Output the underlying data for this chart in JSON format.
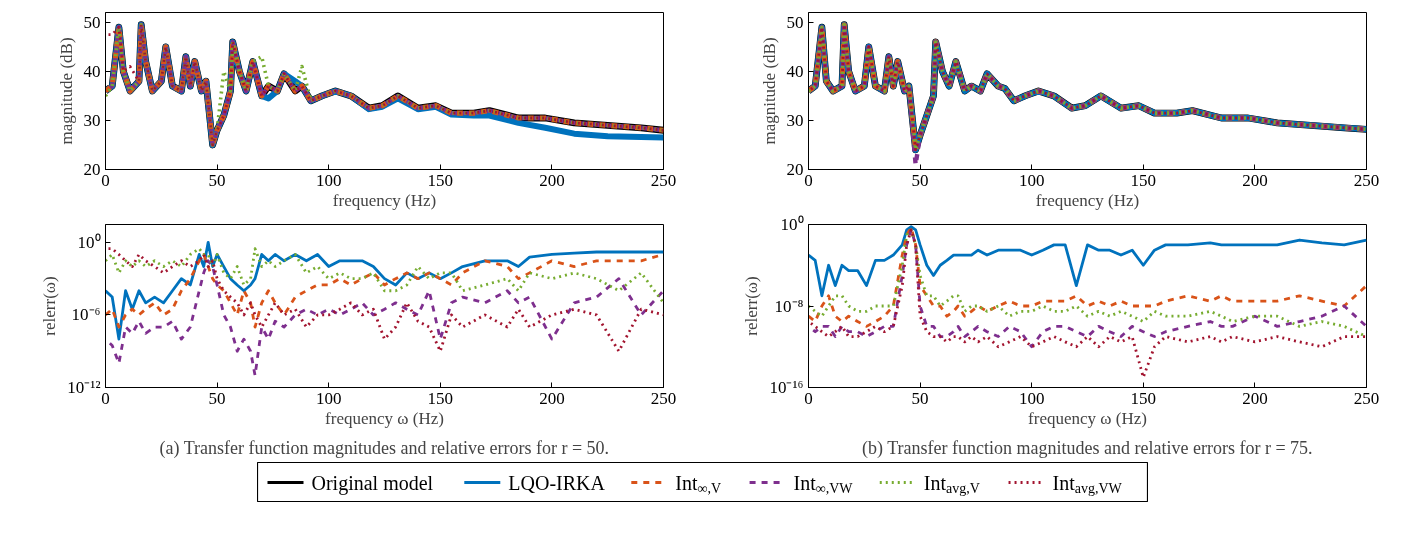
{
  "chart_data": [
    {
      "type": "line",
      "xlabel": "frequency (Hz)",
      "ylabel": "magnitude (dB)",
      "xlim": [
        0,
        250
      ],
      "xticks": [
        0,
        50,
        100,
        150,
        200,
        250
      ],
      "ylim": [
        20,
        52
      ],
      "yticks": [
        20,
        30,
        40,
        50
      ],
      "legend": "bottom",
      "x": [
        0,
        3,
        6,
        8,
        11,
        15,
        16,
        18,
        21,
        25,
        27,
        30,
        34,
        36,
        38,
        40,
        43,
        45,
        48,
        50,
        53,
        56,
        57,
        60,
        63,
        66,
        70,
        73,
        77,
        80,
        85,
        88,
        92,
        97,
        103,
        110,
        118,
        124,
        131,
        140,
        148,
        155,
        165,
        172,
        185,
        197,
        210,
        225,
        240,
        250
      ],
      "series": [
        {
          "name": "Original model",
          "color": "#000000",
          "line_style": "solid",
          "values": [
            36,
            37,
            49,
            40,
            36,
            38,
            49.5,
            42,
            36,
            38,
            45,
            37,
            36,
            43,
            37,
            42,
            36,
            38,
            25,
            28,
            31,
            36,
            46,
            40,
            36,
            42,
            35,
            37,
            36,
            39.5,
            36,
            37,
            34,
            35,
            36,
            35,
            32.5,
            33,
            35,
            32.5,
            33,
            31.5,
            31.5,
            32,
            30.5,
            30.5,
            29.5,
            29,
            28.5,
            28
          ]
        },
        {
          "name": "LQO-IRKA",
          "color": "#0072bd",
          "line_style": "solid",
          "values": [
            36,
            37,
            49,
            40,
            36,
            38,
            49.5,
            42,
            36,
            38,
            45,
            37,
            36,
            43,
            37,
            42,
            36,
            38,
            25,
            28,
            31,
            36,
            46,
            40,
            36,
            42,
            35,
            34.5,
            36,
            39.5,
            38,
            37,
            34,
            35,
            36,
            35,
            32.3,
            32.8,
            34.5,
            32.3,
            32.8,
            31.2,
            31,
            31,
            29.5,
            28.5,
            27.3,
            26.8,
            26.6,
            26.5
          ]
        },
        {
          "name": "Int$_{∞,V}$",
          "color": "#d95319",
          "line_style": "dashed",
          "values": [
            36,
            37,
            49,
            40,
            36,
            38,
            49.5,
            42,
            36,
            38,
            45,
            37,
            36,
            43,
            37,
            42,
            36,
            38,
            25,
            28,
            31,
            36,
            46,
            40,
            36,
            42,
            35,
            37,
            36,
            39.5,
            36,
            37,
            34,
            35,
            36,
            35,
            32.5,
            33,
            35,
            32.5,
            33,
            31.5,
            31.5,
            32,
            30.5,
            30.5,
            29.5,
            29,
            28.5,
            28
          ]
        },
        {
          "name": "Int$_{∞,VW}$",
          "color": "#7e2f8e",
          "line_style": "dashed",
          "values": [
            36,
            37,
            49,
            40,
            36,
            38,
            49.5,
            42,
            36,
            38,
            45,
            37,
            36,
            43,
            37,
            42,
            36,
            38,
            25,
            28,
            31,
            36,
            46,
            40,
            36,
            42,
            35,
            37,
            36,
            39.5,
            36,
            37,
            34,
            35,
            36,
            35,
            32.5,
            33,
            35,
            32.5,
            33,
            31.5,
            31.5,
            32,
            30.5,
            30.5,
            29.5,
            29,
            28.5,
            28
          ]
        },
        {
          "name": "Int$_{avg,V}$",
          "color": "#77ac30",
          "line_style": "dotted",
          "values": [
            35,
            37,
            49,
            40,
            36,
            38,
            49.5,
            42,
            36,
            38,
            45,
            37,
            36,
            43,
            37,
            42,
            36,
            38,
            25,
            28,
            40,
            36,
            46,
            40,
            36,
            42,
            43,
            37,
            36,
            39.5,
            36,
            41,
            34,
            35,
            36,
            35,
            32.5,
            33,
            35,
            32.5,
            33,
            31.5,
            31.5,
            32,
            30.5,
            30.5,
            29.5,
            29,
            28.5,
            28
          ]
        },
        {
          "name": "Int$_{avg,VW}$",
          "color": "#a2142f",
          "line_style": "dotted",
          "values": [
            47.5,
            47.5,
            49,
            40,
            41,
            38,
            49.5,
            42,
            36,
            38,
            45,
            37,
            36,
            43,
            37,
            42,
            36,
            38,
            25,
            28,
            31,
            36,
            46,
            40,
            36,
            42,
            35,
            37,
            36,
            39.5,
            36,
            37,
            34,
            35,
            36,
            35,
            32.5,
            33,
            35,
            32.5,
            33,
            31.5,
            31.5,
            32,
            30.5,
            30.5,
            29.5,
            29,
            28.5,
            28
          ]
        }
      ]
    },
    {
      "type": "line",
      "xlabel": "frequency (Hz)",
      "ylabel": "magnitude (dB)",
      "xlim": [
        0,
        250
      ],
      "xticks": [
        0,
        50,
        100,
        150,
        200,
        250
      ],
      "ylim": [
        20,
        52
      ],
      "yticks": [
        20,
        30,
        40,
        50
      ],
      "x": [
        0,
        3,
        6,
        8,
        11,
        15,
        16,
        18,
        21,
        25,
        27,
        30,
        34,
        36,
        38,
        40,
        43,
        45,
        48,
        50,
        53,
        56,
        57,
        60,
        63,
        66,
        70,
        73,
        77,
        80,
        85,
        88,
        92,
        97,
        103,
        110,
        118,
        124,
        131,
        140,
        148,
        155,
        165,
        172,
        185,
        197,
        210,
        225,
        240,
        250
      ],
      "series": [
        {
          "color": "#000000",
          "line_style": "solid",
          "values": [
            36,
            37,
            49,
            38,
            36,
            37,
            49.5,
            40,
            36,
            37,
            45,
            37,
            36,
            43,
            37,
            42,
            36,
            37,
            24,
            27,
            31,
            35,
            46,
            40,
            37,
            42,
            36,
            37,
            36,
            39.5,
            37,
            36.5,
            34,
            35,
            36,
            35,
            32.5,
            33,
            35,
            32.5,
            33,
            31.5,
            31.5,
            32,
            30.5,
            30.5,
            29.5,
            29,
            28.5,
            28.2
          ]
        },
        {
          "color": "#0072bd",
          "line_style": "solid",
          "values": [
            36,
            37,
            49,
            38,
            36,
            37,
            49.5,
            40,
            36,
            37,
            45,
            37,
            36,
            43,
            37,
            42,
            36,
            37,
            24,
            27,
            31,
            35,
            46,
            40,
            37,
            42,
            36,
            37,
            36,
            39.5,
            37,
            36.5,
            34,
            35,
            36,
            35,
            32.5,
            33,
            35,
            32.5,
            33,
            31.5,
            31.5,
            32,
            30.5,
            30.5,
            29.5,
            29,
            28.5,
            28.2
          ]
        },
        {
          "color": "#d95319",
          "line_style": "dashed",
          "values": [
            36,
            37,
            49,
            38,
            36,
            37,
            49.5,
            40,
            36,
            37,
            45,
            37,
            36,
            43,
            37,
            42,
            36,
            37,
            24,
            27,
            31,
            35,
            46,
            40,
            37,
            42,
            36,
            37,
            36,
            39.5,
            37,
            36.5,
            34,
            35,
            36,
            35,
            32.5,
            33,
            35,
            32.5,
            33,
            31.5,
            31.5,
            32,
            30.5,
            30.5,
            29.5,
            29,
            28.5,
            28.2
          ]
        },
        {
          "color": "#7e2f8e",
          "line_style": "dashed",
          "values": [
            36,
            37,
            49,
            38,
            36,
            37,
            49.5,
            40,
            36,
            37,
            45,
            37,
            36,
            43,
            37,
            42,
            36,
            37,
            21,
            27,
            31,
            35,
            46,
            40,
            37,
            42,
            36,
            37,
            36,
            39.5,
            37,
            36.5,
            34,
            35,
            36,
            35,
            32.5,
            33,
            35,
            32.5,
            33,
            31.5,
            31.5,
            32,
            30.5,
            30.5,
            29.5,
            29,
            28.5,
            28.2
          ]
        },
        {
          "color": "#77ac30",
          "line_style": "dotted",
          "values": [
            36,
            37,
            49,
            38,
            36,
            37,
            49.5,
            40,
            36,
            37,
            45,
            37,
            36,
            43,
            37,
            42,
            36,
            37,
            24,
            27,
            31,
            35,
            46,
            40,
            37,
            42,
            36,
            37,
            36,
            39.5,
            37,
            36.5,
            34,
            35,
            36,
            35,
            32.5,
            33,
            35,
            32.5,
            33,
            31.5,
            31.5,
            32,
            30.5,
            30.5,
            29.5,
            29,
            28.5,
            28.2
          ]
        },
        {
          "color": "#a2142f",
          "line_style": "dotted",
          "values": [
            36,
            37,
            49,
            38,
            36,
            37,
            49.5,
            40,
            36,
            37,
            45,
            37,
            36,
            43,
            37,
            42,
            36,
            37,
            24,
            27,
            31,
            35,
            46,
            40,
            37,
            42,
            36,
            37,
            36,
            39.5,
            37,
            36.5,
            34,
            35,
            36,
            35,
            32.5,
            33,
            35,
            32.5,
            33,
            31.5,
            31.5,
            32,
            30.5,
            30.5,
            29.5,
            29,
            28.5,
            28.2
          ]
        }
      ]
    },
    {
      "type": "line",
      "xlabel": "frequency ω (Hz)",
      "ylabel": "relerr(ω)",
      "log": true,
      "xlim": [
        0,
        250
      ],
      "xticks": [
        0,
        50,
        100,
        150,
        200,
        250
      ],
      "ylim": [
        1e-12,
        30
      ],
      "yticks": [
        {
          "value": 1e-12,
          "label": "10⁻¹²"
        },
        {
          "value": 1e-06,
          "label": "10⁻⁶"
        },
        {
          "value": 1,
          "label": "10⁰"
        }
      ],
      "annotations": [
        "(a) Transfer function magnitudes and relative errors for r = 50."
      ],
      "x": [
        0,
        3,
        6,
        9,
        12,
        15,
        18,
        22,
        26,
        30,
        34,
        38,
        42,
        44,
        46,
        48,
        50,
        53,
        56,
        59,
        62,
        65,
        67,
        70,
        73,
        76,
        80,
        85,
        90,
        95,
        100,
        105,
        110,
        115,
        120,
        125,
        130,
        135,
        140,
        145,
        150,
        155,
        160,
        170,
        180,
        185,
        190,
        200,
        210,
        220,
        230,
        240,
        250
      ],
      "series": [
        {
          "color": "#0072bd",
          "line_style": "solid",
          "values": [
            0.0001,
            3e-05,
            1e-08,
            0.0001,
            3e-06,
            0.0001,
            1e-05,
            3e-05,
            1e-05,
            0.0001,
            0.001,
            0.0003,
            0.1,
            0.01,
            1,
            0.01,
            0.1,
            0.01,
            0.001,
            0.0003,
            0.0001,
            0.0003,
            0.001,
            0.1,
            0.03,
            0.1,
            0.03,
            0.1,
            0.03,
            0.1,
            0.01,
            0.03,
            0.03,
            0.03,
            0.01,
            0.001,
            0.0003,
            0.003,
            0.001,
            0.003,
            0.001,
            0.003,
            0.01,
            0.03,
            0.03,
            0.01,
            0.06,
            0.1,
            0.13,
            0.16,
            0.16,
            0.16,
            0.16
          ]
        },
        {
          "color": "#d95319",
          "line_style": "dashed",
          "values": [
            1e-06,
            3e-06,
            1e-07,
            1e-06,
            3e-06,
            1e-06,
            3e-06,
            1e-05,
            1e-06,
            3e-06,
            0.0001,
            0.001,
            0.03,
            0.1,
            0.01,
            0.001,
            0.0003,
            0.0001,
            1e-05,
            1e-06,
            0.0001,
            1e-05,
            1e-07,
            1e-05,
            0.0001,
            1e-05,
            1e-06,
            3e-05,
            0.0001,
            0.0003,
            0.0003,
            0.001,
            0.0003,
            0.001,
            0.003,
            0.0003,
            0.001,
            0.003,
            0.001,
            0.003,
            0.001,
            0.0003,
            0.003,
            0.03,
            0.01,
            0.001,
            0.003,
            0.03,
            0.01,
            0.03,
            0.03,
            0.03,
            0.1
          ]
        },
        {
          "color": "#7e2f8e",
          "line_style": "dashed",
          "values": [
            1e-08,
            3e-09,
            1e-10,
            1e-07,
            3e-08,
            3e-07,
            3e-08,
            1e-07,
            1e-07,
            3e-07,
            1e-08,
            1e-07,
            0.0001,
            0.003,
            0.03,
            0.01,
            0.0003,
            1e-06,
            1e-07,
            1e-09,
            1e-08,
            1e-09,
            1e-11,
            1e-07,
            1e-08,
            3e-07,
            1e-07,
            1e-06,
            3e-06,
            1e-06,
            3e-06,
            1e-06,
            3e-06,
            1e-05,
            1e-06,
            3e-06,
            1e-05,
            3e-06,
            1e-06,
            0.0001,
            1e-08,
            1e-05,
            3e-05,
            1e-05,
            0.0001,
            1e-05,
            3e-05,
            1e-08,
            1e-05,
            3e-05,
            0.001,
            1e-06,
            0.0001
          ]
        },
        {
          "color": "#77ac30",
          "line_style": "dotted",
          "values": [
            0.03,
            0.1,
            0.003,
            0.03,
            0.01,
            0.03,
            0.01,
            0.03,
            0.01,
            0.03,
            0.01,
            0.1,
            0.3,
            0.1,
            0.1,
            0.01,
            0.1,
            0.003,
            0.001,
            0.01,
            0.0003,
            0.001,
            0.3,
            0.01,
            0.03,
            0.01,
            0.03,
            0.1,
            0.003,
            0.01,
            0.001,
            0.003,
            0.001,
            0.001,
            0.003,
            0.0001,
            0.0001,
            0.0003,
            0.01,
            0.001,
            0.003,
            0.003,
            0.0001,
            0.0003,
            0.001,
            0.0001,
            0.003,
            0.001,
            0.003,
            0.001,
            0.0001,
            0.003,
            1e-05
          ]
        },
        {
          "color": "#a2142f",
          "line_style": "dotted",
          "values": [
            0.3,
            0.3,
            0.1,
            0.03,
            0.01,
            0.1,
            0.03,
            0.01,
            0.003,
            0.01,
            0.03,
            0.01,
            0.03,
            0.1,
            0.01,
            0.03,
            0.001,
            0.0001,
            3e-05,
            1e-05,
            1e-06,
            1e-05,
            1e-06,
            1e-07,
            1e-06,
            1e-05,
            1e-06,
            3e-06,
            1e-07,
            1e-06,
            1e-06,
            3e-06,
            1e-05,
            1e-06,
            3e-06,
            1e-08,
            1e-07,
            1e-05,
            3e-07,
            1e-07,
            1e-09,
            1e-06,
            1e-07,
            1e-06,
            1e-07,
            3e-06,
            1e-07,
            1e-06,
            3e-06,
            1e-06,
            1e-09,
            3e-06,
            1e-06
          ]
        }
      ]
    },
    {
      "type": "line",
      "xlabel": "frequency ω (Hz)",
      "ylabel": "relerr(ω)",
      "log": true,
      "xlim": [
        0,
        250
      ],
      "xticks": [
        0,
        50,
        100,
        150,
        200,
        250
      ],
      "ylim": [
        1e-16,
        1
      ],
      "yticks": [
        {
          "value": 1e-16,
          "label": "10⁻¹⁶"
        },
        {
          "value": 1e-08,
          "label": "10⁻⁸"
        },
        {
          "value": 1,
          "label": "10⁰"
        }
      ],
      "annotations": [
        "(b) Transfer function magnitudes and relative errors for r = 75."
      ],
      "x": [
        0,
        3,
        6,
        9,
        12,
        15,
        18,
        22,
        26,
        30,
        34,
        38,
        42,
        44,
        46,
        48,
        50,
        53,
        56,
        59,
        62,
        65,
        67,
        70,
        73,
        76,
        80,
        85,
        90,
        95,
        100,
        105,
        110,
        115,
        120,
        125,
        130,
        135,
        140,
        145,
        150,
        155,
        160,
        170,
        180,
        185,
        190,
        200,
        210,
        220,
        230,
        240,
        250
      ],
      "series": [
        {
          "color": "#0072bd",
          "line_style": "solid",
          "values": [
            0.001,
            0.0003,
            1e-07,
            0.0001,
            1e-06,
            0.0001,
            3e-05,
            3e-05,
            1e-06,
            0.0003,
            0.0003,
            0.001,
            0.01,
            0.3,
            0.6,
            0.3,
            0.01,
            0.0001,
            1e-05,
            0.0001,
            0.0003,
            0.001,
            0.001,
            0.001,
            0.001,
            0.003,
            0.001,
            0.003,
            0.003,
            0.003,
            0.001,
            0.003,
            0.01,
            0.01,
            1e-06,
            0.01,
            0.003,
            0.003,
            0.001,
            0.003,
            0.0001,
            0.003,
            0.01,
            0.01,
            0.016,
            0.01,
            0.01,
            0.01,
            0.01,
            0.03,
            0.016,
            0.01,
            0.03
          ]
        },
        {
          "color": "#d95319",
          "line_style": "dashed",
          "values": [
            1e-09,
            3e-10,
            1e-08,
            1e-07,
            1e-09,
            3e-10,
            1e-09,
            3e-10,
            1e-10,
            3e-10,
            1e-09,
            1e-08,
            0.001,
            0.1,
            0.5,
            0.01,
            1e-06,
            1e-07,
            1e-08,
            1e-08,
            1e-09,
            3e-09,
            1e-08,
            1e-09,
            3e-09,
            1e-08,
            3e-09,
            1e-08,
            3e-08,
            1e-08,
            1e-08,
            3e-08,
            3e-08,
            3e-08,
            1e-07,
            1e-08,
            3e-08,
            1e-08,
            3e-08,
            1e-08,
            1e-08,
            1e-08,
            3e-08,
            1e-07,
            3e-08,
            1e-07,
            3e-08,
            3e-08,
            3e-08,
            1e-07,
            3e-08,
            1e-08,
            1e-06
          ]
        },
        {
          "color": "#7e2f8e",
          "line_style": "dashed",
          "values": [
            1e-10,
            3e-11,
            1e-10,
            1e-10,
            1e-11,
            1e-10,
            3e-11,
            3e-11,
            1e-11,
            3e-11,
            1e-10,
            1e-10,
            1e-05,
            0.01,
            0.3,
            0.01,
            1e-08,
            1e-10,
            1e-10,
            1e-11,
            1e-11,
            3e-11,
            1e-10,
            1e-11,
            3e-11,
            1e-10,
            3e-11,
            1e-11,
            1e-10,
            3e-11,
            1e-12,
            3e-11,
            1e-10,
            1e-10,
            3e-11,
            1e-11,
            1e-10,
            3e-11,
            1e-11,
            1e-10,
            3e-11,
            1e-11,
            3e-11,
            1e-10,
            3e-10,
            1e-10,
            1e-10,
            1e-09,
            1e-10,
            3e-10,
            1e-09,
            1e-08,
            1e-10
          ]
        },
        {
          "color": "#77ac30",
          "line_style": "dotted",
          "values": [
            1e-08,
            3e-09,
            1e-09,
            1e-08,
            1e-07,
            1e-07,
            1e-08,
            3e-09,
            3e-09,
            1e-08,
            1e-08,
            1e-08,
            0.0001,
            0.1,
            0.3,
            0.01,
            1e-05,
            1e-07,
            1e-07,
            1e-08,
            3e-08,
            1e-07,
            1e-07,
            3e-09,
            1e-08,
            1e-08,
            3e-09,
            1e-08,
            1e-09,
            3e-09,
            3e-09,
            1e-08,
            3e-09,
            3e-09,
            1e-08,
            1e-09,
            3e-09,
            1e-09,
            3e-09,
            1e-09,
            3e-10,
            3e-09,
            1e-09,
            1e-09,
            3e-09,
            1e-09,
            3e-10,
            1e-09,
            1e-09,
            1e-10,
            3e-10,
            1e-10,
            1e-11
          ]
        },
        {
          "color": "#a2142f",
          "line_style": "dotted",
          "values": [
            3e-10,
            1e-10,
            3e-11,
            1e-11,
            3e-11,
            1e-10,
            1e-11,
            1e-11,
            3e-11,
            1e-10,
            3e-11,
            1e-10,
            1e-06,
            0.01,
            0.3,
            0.01,
            1e-09,
            3e-11,
            1e-11,
            1e-11,
            3e-12,
            1e-11,
            1e-11,
            3e-12,
            1e-11,
            3e-12,
            1e-11,
            1e-12,
            3e-12,
            1e-11,
            1e-12,
            3e-12,
            1e-11,
            3e-12,
            1e-12,
            1e-11,
            1e-12,
            1e-11,
            3e-12,
            1e-11,
            1e-15,
            1e-12,
            1e-11,
            3e-12,
            1e-11,
            3e-12,
            1e-11,
            3e-12,
            1e-11,
            3e-12,
            1e-12,
            1e-11,
            1e-11
          ]
        }
      ]
    }
  ]
}
